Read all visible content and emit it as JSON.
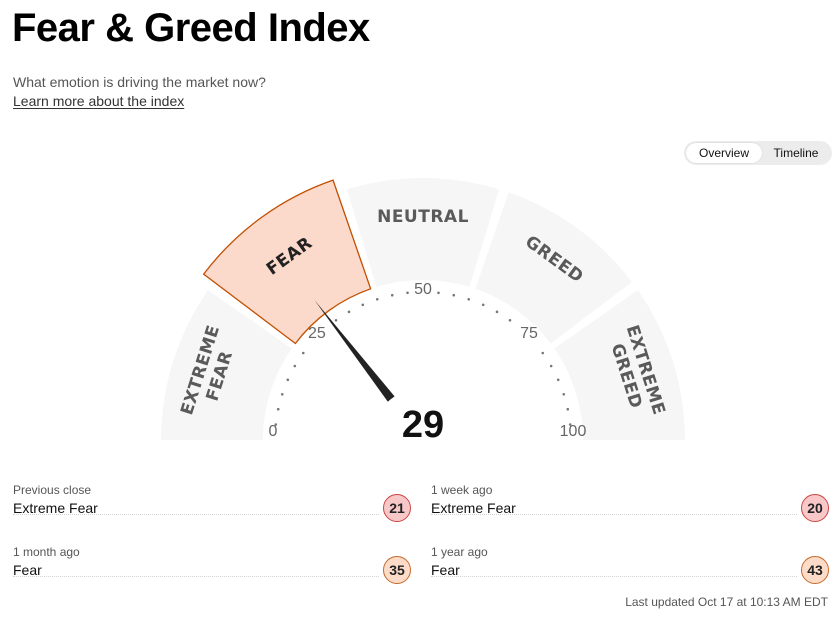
{
  "header": {
    "title": "Fear & Greed Index",
    "subtitle": "What emotion is driving the market now?",
    "learn_more": "Learn more about the index"
  },
  "toggle": {
    "overview": "Overview",
    "timeline": "Timeline"
  },
  "gauge": {
    "value": "29",
    "value_number": 29,
    "active_segment": "FEAR",
    "segments": [
      {
        "name": "extreme-fear",
        "lines": [
          "EXTREME",
          "FEAR"
        ]
      },
      {
        "name": "fear",
        "lines": [
          "FEAR"
        ]
      },
      {
        "name": "neutral",
        "lines": [
          "NEUTRAL"
        ]
      },
      {
        "name": "greed",
        "lines": [
          "GREED"
        ]
      },
      {
        "name": "extreme-greed",
        "lines": [
          "EXTREME",
          "GREED"
        ]
      }
    ],
    "scale_labels": [
      "0",
      "25",
      "50",
      "75",
      "100"
    ],
    "colors": {
      "active_fill": "#fbd9cb",
      "active_stroke": "#c24e00",
      "segment_fill": "#f6f6f6",
      "needle": "#222222"
    }
  },
  "history": [
    {
      "label": "Previous close",
      "rating": "Extreme Fear",
      "value": "21",
      "kind": "extreme"
    },
    {
      "label": "1 week ago",
      "rating": "Extreme Fear",
      "value": "20",
      "kind": "extreme"
    },
    {
      "label": "1 month ago",
      "rating": "Fear",
      "value": "35",
      "kind": "fear"
    },
    {
      "label": "1 year ago",
      "rating": "Fear",
      "value": "43",
      "kind": "fear"
    }
  ],
  "footer": {
    "last_updated": "Last updated Oct 17 at 10:13 AM EDT"
  }
}
